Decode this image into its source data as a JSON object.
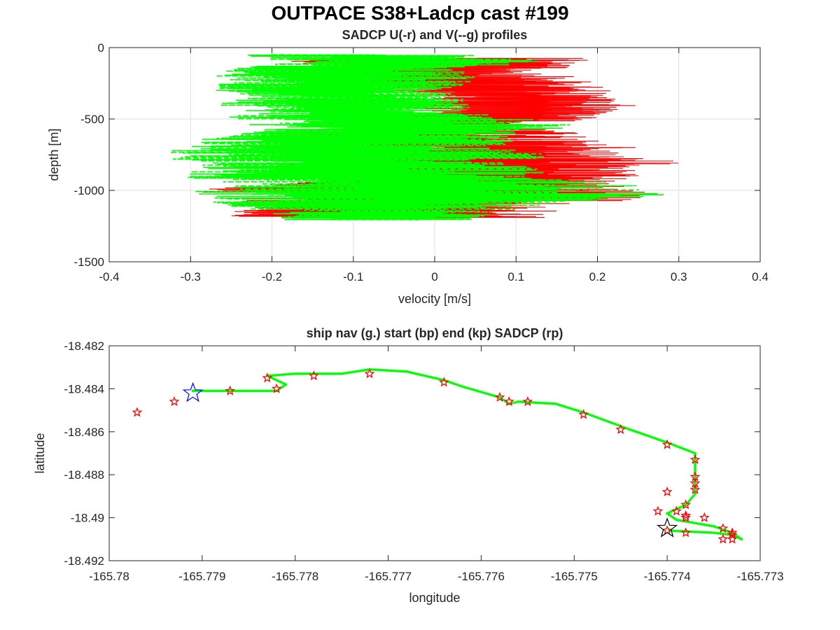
{
  "figure": {
    "suptitle": "OUTPACE S38+Ladcp cast #199"
  },
  "colors": {
    "u_profile": "#ff0000",
    "v_profile": "#00ff00",
    "ship_nav": "#00ff00",
    "start_marker": "#0000ff",
    "end_marker": "#000000",
    "sadcp_marker": "#ff0000",
    "grid": "#dfdfdf",
    "axes": "#262626"
  },
  "chart_data": [
    {
      "type": "line",
      "title": "SADCP U(-r) and V(--g) profiles",
      "xlabel": "velocity [m/s]",
      "ylabel": "depth [m]",
      "xlim": [
        -0.4,
        0.4
      ],
      "ylim": [
        -1500,
        0
      ],
      "xticks": [
        -0.4,
        -0.3,
        -0.2,
        -0.1,
        0,
        0.1,
        0.2,
        0.3,
        0.4
      ],
      "xtick_labels": [
        "-0.4",
        "-0.3",
        "-0.2",
        "-0.1",
        "0",
        "0.1",
        "0.2",
        "0.3",
        "0.4"
      ],
      "yticks": [
        -1500,
        -1000,
        -500,
        0
      ],
      "ytick_labels": [
        "-1500",
        "-1000",
        "-500",
        "0"
      ],
      "grid": true,
      "series": [
        {
          "style": "solid",
          "color": "red",
          "depth_samples": [
            -50,
            -100,
            -150,
            -200,
            -250,
            -300,
            -350,
            -400,
            -450,
            -500,
            -550,
            -600,
            -650,
            -700,
            -750,
            -800,
            -850,
            -900,
            -950,
            -1000,
            -1050,
            -1100,
            -1150,
            -1200
          ],
          "envelope_min": [
            -0.1,
            -0.2,
            -0.1,
            -0.15,
            -0.1,
            -0.05,
            0.0,
            -0.05,
            0.0,
            -0.1,
            -0.1,
            -0.2,
            -0.15,
            -0.1,
            -0.1,
            -0.2,
            -0.2,
            -0.1,
            -0.2,
            -0.3,
            -0.25,
            -0.25,
            -0.25,
            -0.25
          ],
          "envelope_max": [
            0.26,
            0.21,
            0.15,
            0.17,
            0.2,
            0.22,
            0.22,
            0.25,
            0.22,
            0.2,
            0.1,
            0.18,
            0.2,
            0.25,
            0.23,
            0.31,
            0.26,
            0.25,
            0.22,
            0.26,
            0.3,
            0.15,
            0.15,
            0.15
          ]
        },
        {
          "style": "dashed",
          "color": "green",
          "depth_samples": [
            -50,
            -100,
            -150,
            -200,
            -250,
            -300,
            -350,
            -400,
            -450,
            -500,
            -550,
            -600,
            -650,
            -700,
            -750,
            -800,
            -850,
            -900,
            -950,
            -1000,
            -1050,
            -1100,
            -1150,
            -1200
          ],
          "envelope_min": [
            -0.27,
            -0.2,
            -0.25,
            -0.28,
            -0.27,
            -0.27,
            -0.24,
            -0.28,
            -0.24,
            -0.26,
            -0.22,
            -0.25,
            -0.3,
            -0.33,
            -0.34,
            -0.32,
            -0.3,
            -0.32,
            -0.25,
            -0.3,
            -0.29,
            -0.27,
            -0.2,
            -0.2
          ],
          "envelope_max": [
            0.05,
            0.15,
            0.03,
            0.05,
            0.05,
            0.0,
            0.05,
            0.05,
            0.03,
            0.13,
            0.18,
            0.1,
            0.1,
            0.08,
            0.15,
            0.1,
            0.13,
            0.15,
            0.25,
            0.28,
            0.29,
            0.15,
            0.1,
            0.05
          ]
        }
      ]
    },
    {
      "type": "scatter",
      "title": "ship nav (g.) start (bp) end (kp) SADCP (rp)",
      "xlabel": "longitude",
      "ylabel": "latitude",
      "xlim": [
        -165.78,
        -165.773
      ],
      "ylim": [
        -18.492,
        -18.482
      ],
      "xticks": [
        -165.78,
        -165.779,
        -165.778,
        -165.777,
        -165.776,
        -165.775,
        -165.774,
        -165.773
      ],
      "xtick_labels": [
        "-165.78",
        "-165.779",
        "-165.778",
        "-165.777",
        "-165.776",
        "-165.775",
        "-165.774",
        "-165.773"
      ],
      "yticks": [
        -18.492,
        -18.49,
        -18.488,
        -18.486,
        -18.484,
        -18.482
      ],
      "ytick_labels": [
        "-18.492",
        "-18.49",
        "-18.488",
        "-18.486",
        "-18.484",
        "-18.482"
      ],
      "grid": false,
      "ship_nav_track": [
        [
          -165.7791,
          -18.4841
        ],
        [
          -165.7787,
          -18.4841
        ],
        [
          -165.7782,
          -18.4841
        ],
        [
          -165.7781,
          -18.4838
        ],
        [
          -165.7783,
          -18.4834
        ],
        [
          -165.778,
          -18.4833
        ],
        [
          -165.7775,
          -18.4833
        ],
        [
          -165.7772,
          -18.4831
        ],
        [
          -165.7768,
          -18.4832
        ],
        [
          -165.7764,
          -18.4836
        ],
        [
          -165.7762,
          -18.4839
        ],
        [
          -165.7758,
          -18.4844
        ],
        [
          -165.7757,
          -18.4847
        ],
        [
          -165.7756,
          -18.4846
        ],
        [
          -165.7752,
          -18.4847
        ],
        [
          -165.7749,
          -18.4851
        ],
        [
          -165.7744,
          -18.4859
        ],
        [
          -165.774,
          -18.4865
        ],
        [
          -165.7737,
          -18.487
        ],
        [
          -165.7737,
          -18.4882
        ],
        [
          -165.7737,
          -18.4889
        ],
        [
          -165.7738,
          -18.4894
        ],
        [
          -165.774,
          -18.4898
        ],
        [
          -165.7739,
          -18.4901
        ],
        [
          -165.7735,
          -18.4904
        ],
        [
          -165.7733,
          -18.4907
        ],
        [
          -165.7732,
          -18.491
        ],
        [
          -165.7733,
          -18.4908
        ],
        [
          -165.7735,
          -18.4907
        ],
        [
          -165.774,
          -18.4906
        ]
      ],
      "sadcp_points": [
        [
          -165.7797,
          -18.4851
        ],
        [
          -165.7793,
          -18.4846
        ],
        [
          -165.7787,
          -18.4841
        ],
        [
          -165.7783,
          -18.4835
        ],
        [
          -165.7782,
          -18.484
        ],
        [
          -165.7778,
          -18.4834
        ],
        [
          -165.7772,
          -18.4833
        ],
        [
          -165.7764,
          -18.4837
        ],
        [
          -165.7758,
          -18.4844
        ],
        [
          -165.7757,
          -18.4846
        ],
        [
          -165.7755,
          -18.4846
        ],
        [
          -165.7749,
          -18.4852
        ],
        [
          -165.7745,
          -18.4859
        ],
        [
          -165.774,
          -18.4866
        ],
        [
          -165.7737,
          -18.4873
        ],
        [
          -165.7737,
          -18.4881
        ],
        [
          -165.7737,
          -18.4884
        ],
        [
          -165.7737,
          -18.4887
        ],
        [
          -165.774,
          -18.4888
        ],
        [
          -165.7738,
          -18.4894
        ],
        [
          -165.7739,
          -18.4897
        ],
        [
          -165.7741,
          -18.4897
        ],
        [
          -165.7738,
          -18.4899
        ],
        [
          -165.7738,
          -18.49
        ],
        [
          -165.7736,
          -18.49
        ],
        [
          -165.7734,
          -18.4905
        ],
        [
          -165.7733,
          -18.4907
        ],
        [
          -165.7733,
          -18.4908
        ],
        [
          -165.7733,
          -18.491
        ],
        [
          -165.7734,
          -18.491
        ],
        [
          -165.7738,
          -18.4907
        ],
        [
          -165.774,
          -18.4906
        ]
      ],
      "start_point": [
        -165.7791,
        -18.4842
      ],
      "end_point": [
        -165.774,
        -18.4905
      ]
    }
  ]
}
